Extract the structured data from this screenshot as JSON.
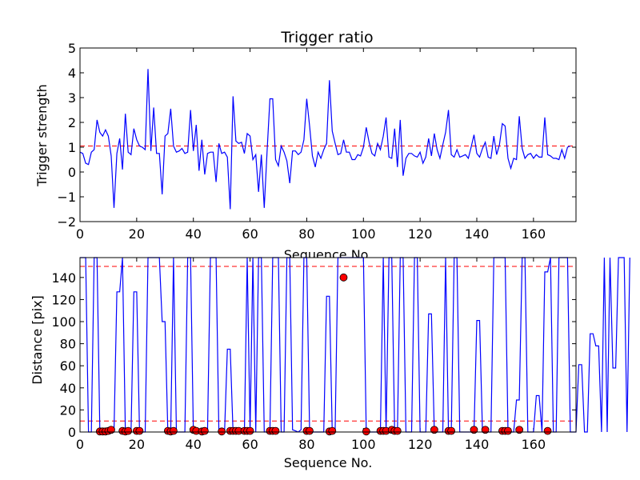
{
  "chart_data": [
    {
      "type": "line",
      "title": "Trigger ratio",
      "xlabel": "Sequence No.",
      "ylabel": "Trigger strength",
      "xlim": [
        0,
        175
      ],
      "ylim": [
        -2,
        5
      ],
      "xticks": [
        0,
        20,
        40,
        60,
        80,
        100,
        120,
        140,
        160
      ],
      "yticks": [
        -2,
        -1,
        0,
        1,
        2,
        3,
        4,
        5
      ],
      "line_color": "#0000ff",
      "threshold": {
        "value": 1.05,
        "color": "#ff0000",
        "style": "dashed"
      },
      "series": [
        {
          "values": [
            0.8,
            0.75,
            0.35,
            0.3,
            0.8,
            0.9,
            2.1,
            1.6,
            1.45,
            1.7,
            1.45,
            0.65,
            -1.45,
            0.75,
            1.35,
            0.1,
            2.35,
            0.8,
            0.7,
            1.75,
            1.3,
            1.05,
            1.0,
            0.9,
            4.15,
            0.85,
            2.6,
            0.75,
            0.75,
            -0.9,
            1.45,
            1.55,
            2.55,
            1.05,
            0.8,
            0.85,
            0.95,
            0.75,
            0.8,
            2.5,
            0.85,
            1.9,
            0.05,
            1.3,
            -0.1,
            0.75,
            0.8,
            0.8,
            -0.4,
            1.15,
            0.75,
            0.8,
            0.6,
            -1.5,
            3.05,
            1.25,
            1.15,
            1.2,
            0.75,
            1.55,
            1.45,
            0.5,
            0.7,
            -0.8,
            0.7,
            -1.45,
            0.8,
            2.95,
            2.95,
            0.5,
            0.25,
            1.05,
            0.8,
            0.45,
            -0.45,
            0.85,
            0.85,
            0.7,
            0.8,
            1.3,
            2.95,
            1.85,
            0.65,
            0.2,
            0.8,
            0.55,
            0.9,
            1.15,
            3.7,
            1.65,
            1.15,
            0.7,
            0.75,
            1.3,
            0.8,
            0.8,
            0.5,
            0.5,
            0.7,
            0.65,
            1.0,
            1.8,
            1.2,
            0.75,
            0.65,
            1.15,
            0.9,
            1.45,
            2.2,
            0.6,
            0.55,
            1.75,
            0.2,
            2.1,
            -0.15,
            0.55,
            0.75,
            0.75,
            0.65,
            0.6,
            0.8,
            0.35,
            0.6,
            1.35,
            0.65,
            1.55,
            0.9,
            0.55,
            1.1,
            1.6,
            2.5,
            0.7,
            0.6,
            0.9,
            0.6,
            0.65,
            0.7,
            0.55,
            1.0,
            1.5,
            0.75,
            0.6,
            0.95,
            1.2,
            0.6,
            0.55,
            1.45,
            0.7,
            1.1,
            1.95,
            1.85,
            0.55,
            0.15,
            0.55,
            0.5,
            2.25,
            0.95,
            0.55,
            0.7,
            0.75,
            0.55,
            0.7,
            0.6,
            0.6,
            2.2,
            0.7,
            0.65,
            0.55,
            0.55,
            0.5,
            0.9,
            0.55,
            1.0,
            1.05
          ]
        }
      ]
    },
    {
      "type": "line",
      "title": "",
      "xlabel": "Sequence No.",
      "ylabel": "Distance [pix]",
      "xlim": [
        0,
        175
      ],
      "ylim": [
        0,
        158
      ],
      "xticks": [
        0,
        20,
        40,
        60,
        80,
        100,
        120,
        140,
        160
      ],
      "yticks": [
        0,
        20,
        40,
        60,
        80,
        100,
        120,
        140
      ],
      "line_color": "#0000ff",
      "thresholds": [
        {
          "value": 150,
          "color": "#ff0000",
          "style": "dashed"
        },
        {
          "value": 10,
          "color": "#ff0000",
          "style": "dashed"
        }
      ],
      "series": [
        {
          "values": [
            158,
            158,
            158,
            0,
            0,
            158,
            158,
            0,
            0,
            0,
            0,
            0,
            0,
            127,
            127,
            158,
            0,
            0,
            0,
            127,
            127,
            0,
            0,
            0,
            158,
            158,
            158,
            158,
            158,
            100,
            100,
            0,
            0,
            158,
            0,
            0,
            0,
            0,
            158,
            158,
            0,
            0,
            0,
            0,
            0,
            0,
            158,
            158,
            158,
            0,
            0,
            0,
            75,
            75,
            0,
            0,
            0,
            0,
            0,
            158,
            0,
            158,
            0,
            158,
            158,
            0,
            0,
            0,
            158,
            158,
            158,
            0,
            0,
            158,
            158,
            2,
            1,
            0,
            2,
            158,
            158,
            0,
            0,
            0,
            0,
            0,
            0,
            123,
            123,
            0,
            0,
            158,
            158,
            158,
            158,
            158,
            158,
            158,
            158,
            158,
            158,
            0,
            0,
            0,
            0,
            0,
            0,
            158,
            0,
            158,
            158,
            0,
            0,
            158,
            158,
            0,
            0,
            0,
            158,
            158,
            0,
            0,
            0,
            107,
            107,
            0,
            0,
            0,
            0,
            158,
            0,
            0,
            158,
            158,
            0,
            0,
            0,
            0,
            0,
            0,
            101,
            101,
            0,
            0,
            0,
            0,
            158,
            158,
            158,
            158,
            158,
            0,
            0,
            0,
            29,
            29,
            158,
            158,
            0,
            0,
            0,
            33,
            33,
            0,
            145,
            145,
            158,
            0,
            0,
            158,
            158,
            158,
            158,
            0,
            0,
            0,
            61,
            61,
            0,
            0,
            89,
            89,
            78,
            78,
            0,
            158,
            0,
            158,
            58,
            58,
            158,
            158,
            158,
            0,
            158
          ]
        }
      ],
      "markers": {
        "color": "#ff0000",
        "edge_color": "#000000",
        "points": [
          [
            7,
            0.5
          ],
          [
            8,
            0.5
          ],
          [
            9,
            0.5
          ],
          [
            10,
            1
          ],
          [
            11,
            2
          ],
          [
            15,
            1
          ],
          [
            16,
            0.5
          ],
          [
            17,
            1
          ],
          [
            20,
            1
          ],
          [
            21,
            1
          ],
          [
            31,
            1
          ],
          [
            32,
            0.5
          ],
          [
            33,
            1
          ],
          [
            40,
            2
          ],
          [
            41,
            1
          ],
          [
            43,
            0.5
          ],
          [
            44,
            1
          ],
          [
            50,
            0.5
          ],
          [
            53,
            1
          ],
          [
            54,
            1
          ],
          [
            55,
            1
          ],
          [
            56,
            1
          ],
          [
            58,
            1
          ],
          [
            59,
            1
          ],
          [
            60,
            1
          ],
          [
            67,
            1
          ],
          [
            68,
            1
          ],
          [
            69,
            1
          ],
          [
            80,
            1
          ],
          [
            81,
            1
          ],
          [
            88,
            0.5
          ],
          [
            89,
            1
          ],
          [
            93,
            140
          ],
          [
            101,
            0.5
          ],
          [
            106,
            1
          ],
          [
            107,
            1
          ],
          [
            108,
            1
          ],
          [
            110,
            2
          ],
          [
            111,
            1
          ],
          [
            112,
            1
          ],
          [
            125,
            2
          ],
          [
            130,
            1
          ],
          [
            131,
            1
          ],
          [
            139,
            2
          ],
          [
            143,
            2
          ],
          [
            149,
            1
          ],
          [
            150,
            1
          ],
          [
            151,
            1
          ],
          [
            155,
            2
          ],
          [
            165,
            1
          ]
        ]
      }
    }
  ]
}
